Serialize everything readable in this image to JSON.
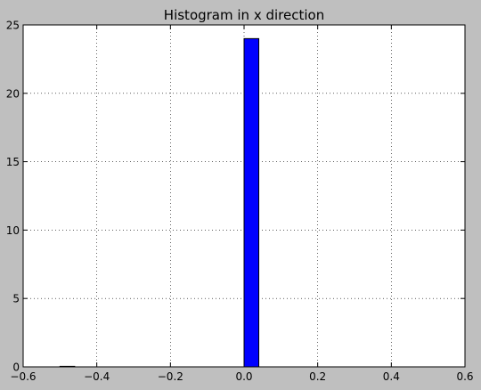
{
  "chart_data": {
    "type": "bar",
    "title": "Histogram in x direction",
    "xlabel": "",
    "ylabel": "",
    "xlim": [
      -0.6,
      0.6
    ],
    "ylim": [
      0,
      25
    ],
    "xticks": [
      -0.6,
      -0.4,
      -0.2,
      0.0,
      0.2,
      0.4,
      0.6
    ],
    "xtick_labels": [
      "−0.6",
      "−0.4",
      "−0.2",
      "0.0",
      "0.2",
      "0.4",
      "0.6"
    ],
    "yticks": [
      0,
      5,
      10,
      15,
      20,
      25
    ],
    "ytick_labels": [
      "0",
      "5",
      "10",
      "15",
      "20",
      "25"
    ],
    "grid": true,
    "bins": [
      {
        "x_start": -0.5,
        "x_end": -0.46,
        "value": 0
      },
      {
        "x_start": 0.0,
        "x_end": 0.04,
        "value": 24
      }
    ],
    "bar_color": "#0000ff",
    "edge_color": "#000000"
  }
}
